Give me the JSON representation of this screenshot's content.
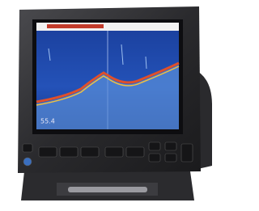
{
  "screen": {
    "depth_readout": "55.4"
  }
}
